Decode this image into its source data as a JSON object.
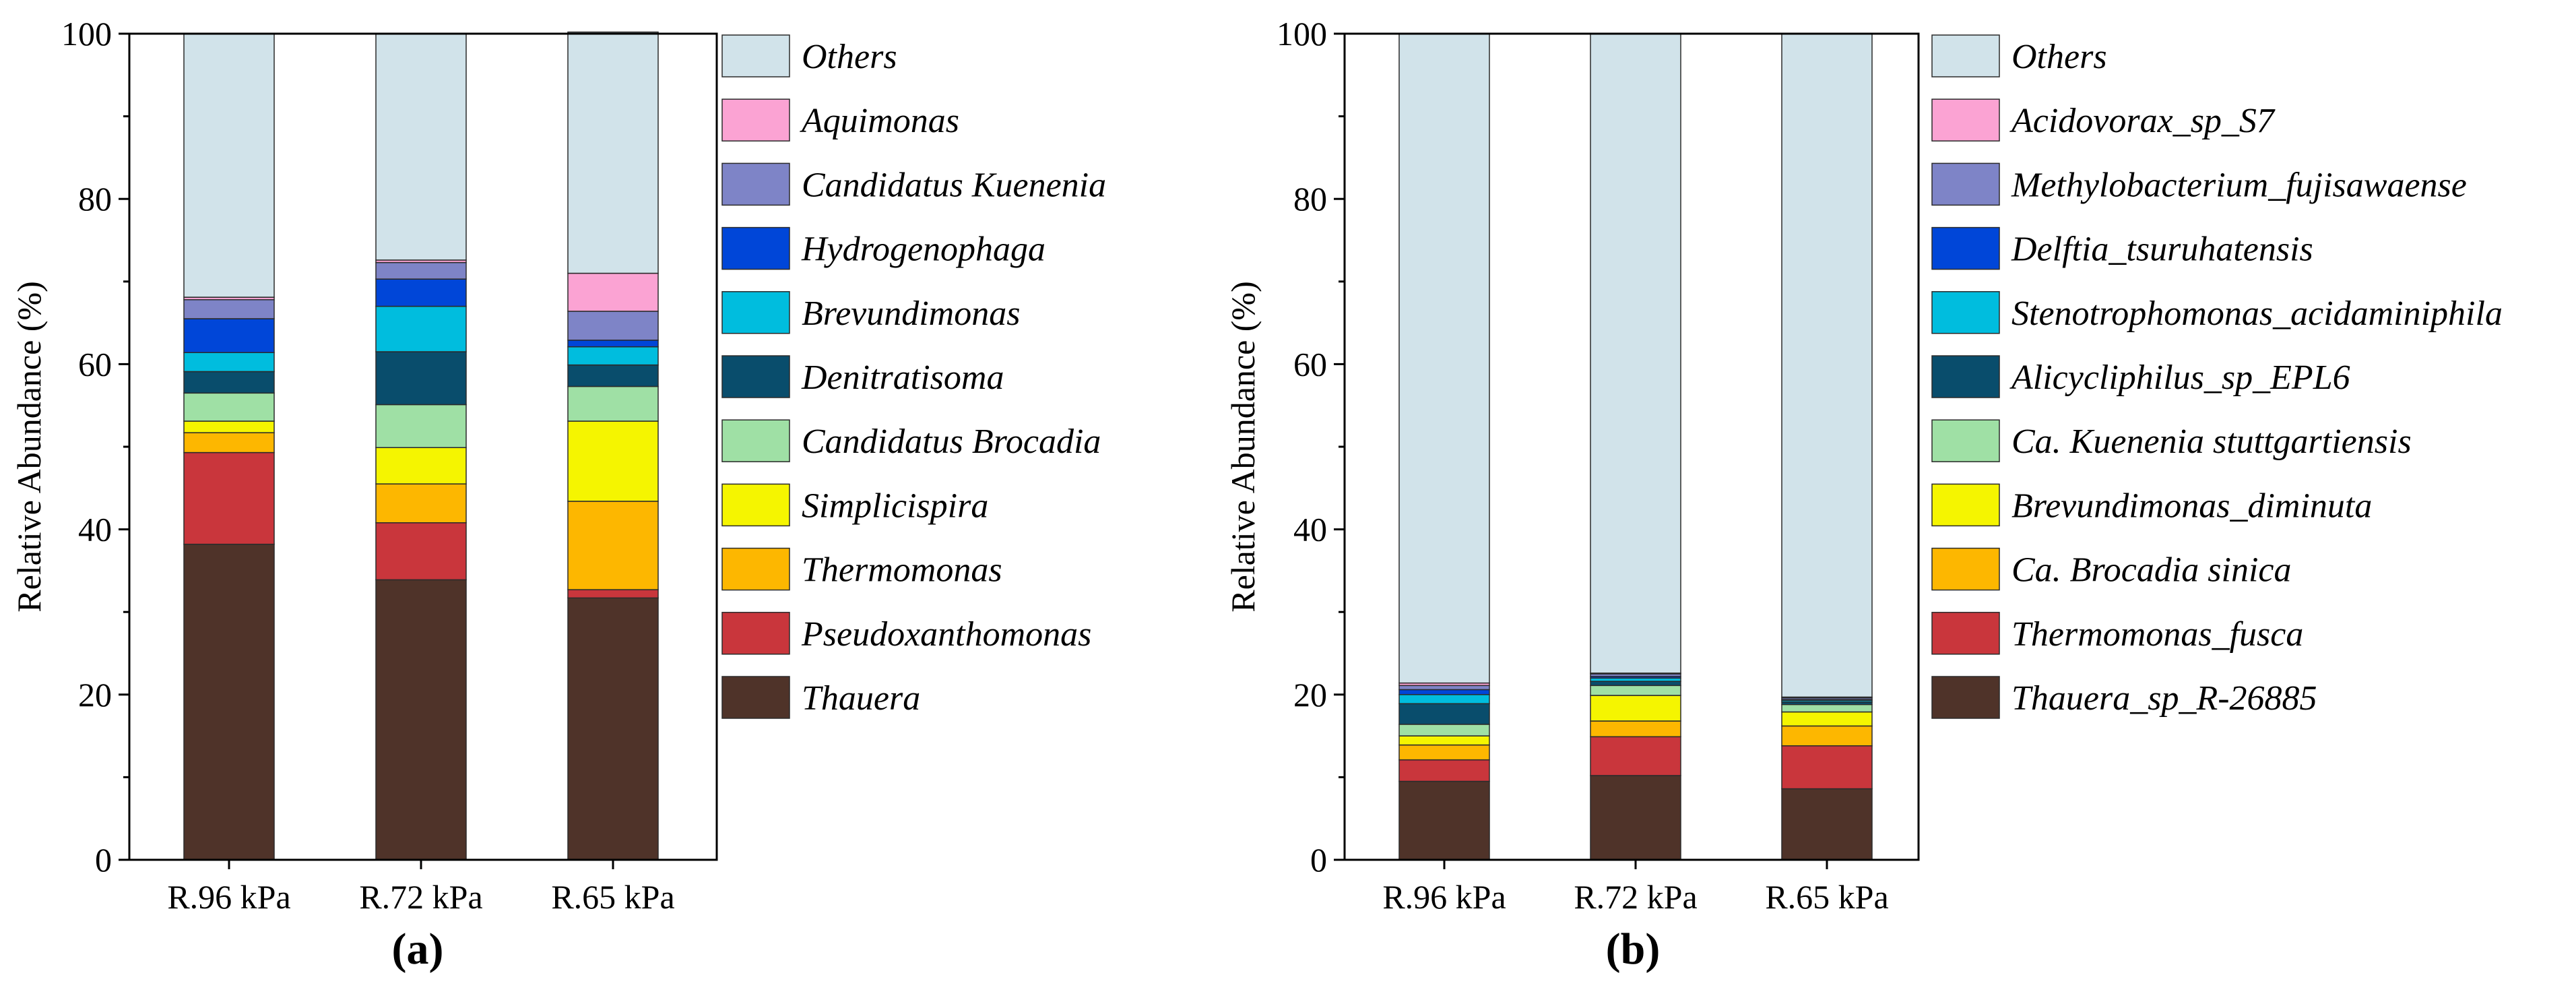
{
  "chart_data": [
    {
      "type": "bar",
      "stacked": true,
      "panel_label": "(a)",
      "categories": [
        "R.96 kPa",
        "R.72 kPa",
        "R.65 kPa"
      ],
      "ylabel": "Relative Abundance (%)",
      "ylim": [
        0,
        100
      ],
      "yticks": [
        0,
        20,
        40,
        60,
        80,
        100
      ],
      "legend_position": "right",
      "series": [
        {
          "name": "Thauera",
          "color": "#4f3329",
          "values": [
            38.2,
            33.9,
            31.7
          ]
        },
        {
          "name": "Pseudoxanthomonas",
          "color": "#c9363c",
          "values": [
            11.1,
            6.9,
            1.0
          ]
        },
        {
          "name": "Thermomonas",
          "color": "#fdb700",
          "values": [
            2.4,
            4.7,
            10.7
          ]
        },
        {
          "name": "Simplicispira",
          "color": "#f5f500",
          "values": [
            1.4,
            4.4,
            9.7
          ]
        },
        {
          "name": "Candidatus Brocadia",
          "color": "#9fe0a5",
          "values": [
            3.4,
            5.2,
            4.2
          ]
        },
        {
          "name": "Denitratisoma",
          "color": "#094d6c",
          "values": [
            2.6,
            6.4,
            2.6
          ]
        },
        {
          "name": "Brevundimonas",
          "color": "#00bdde",
          "values": [
            2.3,
            5.5,
            2.2
          ]
        },
        {
          "name": "Hydrogenophaga",
          "color": "#0046d8",
          "values": [
            4.1,
            3.3,
            0.8
          ]
        },
        {
          "name": "Candidatus Kuenenia",
          "color": "#7e84c7",
          "values": [
            2.3,
            2.0,
            3.5
          ]
        },
        {
          "name": "Aquimonas",
          "color": "#fba3d3",
          "values": [
            0.3,
            0.3,
            4.6
          ]
        },
        {
          "name": "Others",
          "color": "#d1e3ea",
          "values": [
            31.9,
            27.4,
            29.2
          ]
        }
      ]
    },
    {
      "type": "bar",
      "stacked": true,
      "panel_label": "(b)",
      "categories": [
        "R.96 kPa",
        "R.72 kPa",
        "R.65 kPa"
      ],
      "ylabel": "Relative Abundance (%)",
      "ylim": [
        0,
        100
      ],
      "yticks": [
        0,
        20,
        40,
        60,
        80,
        100
      ],
      "legend_position": "right",
      "series": [
        {
          "name": "Thauera_sp_R-26885",
          "color": "#4f3329",
          "values": [
            9.5,
            10.2,
            8.6
          ]
        },
        {
          "name": "Thermomonas_fusca",
          "color": "#c9363c",
          "values": [
            2.6,
            4.7,
            5.2
          ]
        },
        {
          "name": "Ca. Brocadia sinica",
          "color": "#fdb700",
          "values": [
            1.8,
            1.9,
            2.4
          ]
        },
        {
          "name": "Brevundimonas_diminuta",
          "color": "#f5f500",
          "values": [
            1.1,
            3.1,
            1.7
          ]
        },
        {
          "name": "Ca. Kuenenia stuttgartiensis",
          "color": "#9fe0a5",
          "values": [
            1.4,
            1.2,
            0.9
          ]
        },
        {
          "name": "Alicycliphilus_sp_EPL6",
          "color": "#094d6c",
          "values": [
            2.5,
            0.5,
            0.3
          ]
        },
        {
          "name": "Stenotrophomonas_acidaminiphila",
          "color": "#00bdde",
          "values": [
            1.1,
            0.4,
            0.2
          ]
        },
        {
          "name": "Delftia_tsuruhatensis",
          "color": "#0046d8",
          "values": [
            0.6,
            0.2,
            0.1
          ]
        },
        {
          "name": "Methylobacterium_fujisawaense",
          "color": "#7e84c7",
          "values": [
            0.5,
            0.3,
            0.2
          ]
        },
        {
          "name": "Acidovorax_sp_S7",
          "color": "#fba3d3",
          "values": [
            0.3,
            0.1,
            0.1
          ]
        },
        {
          "name": "Others",
          "color": "#d1e3ea",
          "values": [
            78.6,
            77.4,
            80.3
          ]
        }
      ]
    }
  ]
}
